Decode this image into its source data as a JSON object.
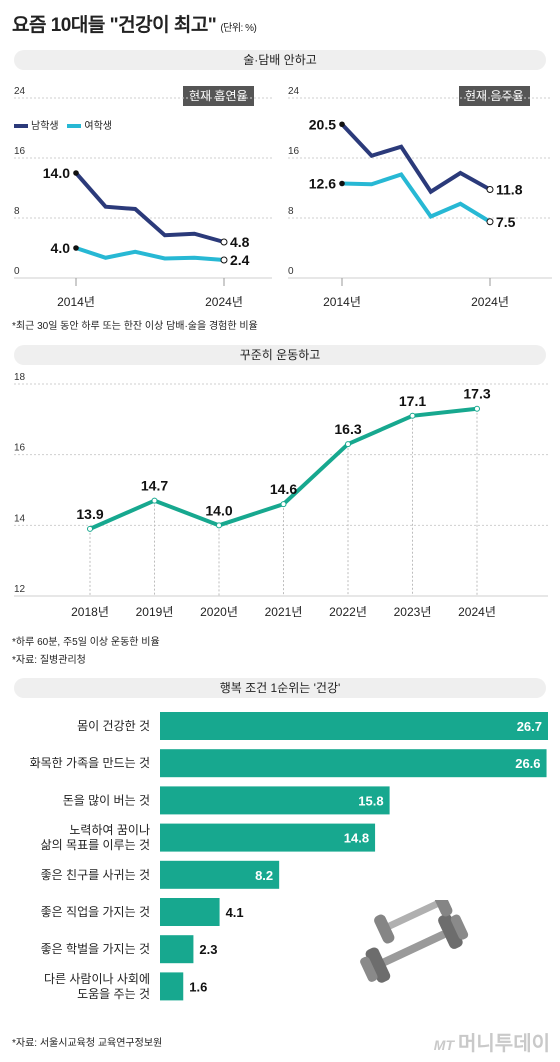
{
  "header": {
    "title": "요즘 10대들 \"건강이 최고\"",
    "unit": "(단위: %)"
  },
  "section1": {
    "label": "술·담배 안하고"
  },
  "smoking": {
    "tag": "현재 흡연율",
    "legend": [
      "남학생",
      "여학생"
    ],
    "chart_data": {
      "type": "line",
      "title": "현재 흡연율",
      "x": [
        2014,
        2016,
        2018,
        2020,
        2022,
        2024
      ],
      "ylim": [
        0,
        24
      ],
      "yticks": [
        "24",
        "16",
        "8",
        "0"
      ],
      "xtick_labels": [
        "2014년",
        "2024년"
      ],
      "series": [
        {
          "name": "남학생",
          "color": "#2b3a7a",
          "values": [
            14.0,
            9.5,
            9.2,
            5.7,
            5.9,
            4.8
          ],
          "labels": [
            "14.0",
            "4.8"
          ]
        },
        {
          "name": "여학생",
          "color": "#27b8d4",
          "values": [
            4.0,
            2.7,
            3.5,
            2.6,
            2.7,
            2.4
          ],
          "labels": [
            "4.0",
            "2.4"
          ]
        }
      ]
    }
  },
  "drinking": {
    "tag": "현재 음주율",
    "chart_data": {
      "type": "line",
      "title": "현재 음주율",
      "x": [
        2014,
        2016,
        2018,
        2020,
        2022,
        2024
      ],
      "ylim": [
        0,
        24
      ],
      "yticks": [
        "24",
        "16",
        "8",
        "0"
      ],
      "xtick_labels": [
        "2014년",
        "2024년"
      ],
      "series": [
        {
          "name": "남학생",
          "color": "#2b3a7a",
          "values": [
            20.5,
            16.3,
            17.5,
            11.5,
            14.0,
            11.8
          ],
          "labels": [
            "20.5",
            "11.8"
          ]
        },
        {
          "name": "여학생",
          "color": "#27b8d4",
          "values": [
            12.6,
            12.5,
            13.8,
            8.2,
            9.9,
            7.5
          ],
          "labels": [
            "12.6",
            "7.5"
          ]
        }
      ]
    }
  },
  "note1": "*최근 30일 동안 하루 또는 한잔 이상 담배·술을 경험한 비율",
  "section2": {
    "label": "꾸준히 운동하고"
  },
  "exercise": {
    "chart_data": {
      "type": "line",
      "categories": [
        "2018년",
        "2019년",
        "2020년",
        "2021년",
        "2022년",
        "2023년",
        "2024년"
      ],
      "values": [
        13.9,
        14.7,
        14.0,
        14.6,
        16.3,
        17.1,
        17.3
      ],
      "labels": [
        "13.9",
        "14.7",
        "14.0",
        "14.6",
        "16.3",
        "17.1",
        "17.3"
      ],
      "ylim": [
        12,
        18
      ],
      "yticks": [
        "18",
        "16",
        "14",
        "12"
      ],
      "color": "#17a88f"
    }
  },
  "note2": "*하루 60분, 주5일 이상 운동한 비율",
  "note3": "*자료: 질병관리청",
  "section3": {
    "label": "행복 조건 1순위는 '건강'"
  },
  "happiness": {
    "chart_data": {
      "type": "bar",
      "categories": [
        [
          "몸이 건강한 것"
        ],
        [
          "화목한 가족을 만드는 것"
        ],
        [
          "돈을 많이 버는 것"
        ],
        [
          "노력하여 꿈이나",
          "삶의 목표를 이루는 것"
        ],
        [
          "좋은 친구를 사귀는 것"
        ],
        [
          "좋은 직업을 가지는 것"
        ],
        [
          "좋은 학벌을 가지는 것"
        ],
        [
          "다른 사람이나 사회에",
          "도움을 주는 것"
        ]
      ],
      "values": [
        26.7,
        26.6,
        15.8,
        14.8,
        8.2,
        4.1,
        2.3,
        1.6
      ],
      "labels": [
        "26.7",
        "26.6",
        "15.8",
        "14.8",
        "8.2",
        "4.1",
        "2.3",
        "1.6"
      ],
      "color": "#17a88f"
    }
  },
  "note4": "*자료: 서울시교육청 교육연구정보원",
  "logo": {
    "mark": "MT",
    "text": "머니투데이"
  }
}
